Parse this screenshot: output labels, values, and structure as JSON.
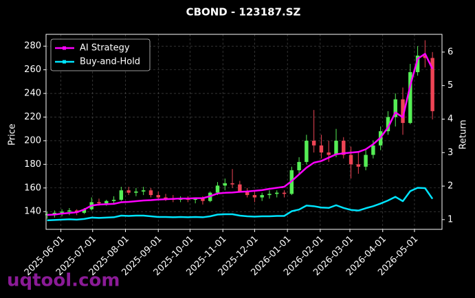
{
  "chart_data": {
    "type": "candlestick",
    "title": "CBOND - 123187.SZ",
    "ylabel": "Price",
    "y2label": "Return",
    "x": [
      "2025-05-19",
      "2025-05-26",
      "2025-06-02",
      "2025-06-09",
      "2025-06-16",
      "2025-06-23",
      "2025-06-30",
      "2025-07-07",
      "2025-07-14",
      "2025-07-21",
      "2025-07-28",
      "2025-08-04",
      "2025-08-11",
      "2025-08-18",
      "2025-08-25",
      "2025-09-01",
      "2025-09-08",
      "2025-09-15",
      "2025-09-22",
      "2025-09-29",
      "2025-10-06",
      "2025-10-13",
      "2025-10-20",
      "2025-10-27",
      "2025-11-03",
      "2025-11-10",
      "2025-11-17",
      "2025-11-24",
      "2025-12-01",
      "2025-12-08",
      "2025-12-15",
      "2025-12-22",
      "2025-12-29",
      "2026-01-05",
      "2026-01-12",
      "2026-01-19",
      "2026-01-26",
      "2026-02-02",
      "2026-02-09",
      "2026-02-16",
      "2026-02-23",
      "2026-03-02",
      "2026-03-09",
      "2026-03-16",
      "2026-03-23",
      "2026-03-30",
      "2026-04-06",
      "2026-04-13",
      "2026-04-20",
      "2026-04-27",
      "2026-05-04",
      "2026-05-11",
      "2026-05-18"
    ],
    "open": [
      137,
      138,
      139,
      140,
      141,
      139,
      142,
      148,
      147,
      149,
      150,
      158,
      156,
      157,
      158,
      154,
      152,
      151,
      150,
      151,
      150,
      151,
      149,
      156,
      162,
      164,
      163,
      157,
      154,
      152,
      154,
      155,
      156,
      155,
      175,
      182,
      200,
      196,
      190,
      188,
      200,
      188,
      180,
      178,
      188,
      196,
      208,
      220,
      235,
      215,
      258,
      272,
      270
    ],
    "high": [
      140,
      141,
      142,
      143,
      142,
      143,
      152,
      151,
      150,
      153,
      161,
      161,
      160,
      161,
      160,
      157,
      155,
      154,
      153,
      153,
      152,
      153,
      157,
      165,
      168,
      176,
      166,
      160,
      157,
      156,
      158,
      158,
      158,
      178,
      186,
      205,
      226,
      205,
      200,
      210,
      203,
      195,
      190,
      192,
      200,
      212,
      225,
      240,
      245,
      265,
      280,
      285,
      275
    ],
    "low": [
      134,
      135,
      136,
      137,
      137,
      138,
      141,
      145,
      145,
      147,
      149,
      154,
      153,
      154,
      152,
      150,
      149,
      148,
      148,
      148,
      147,
      146,
      148,
      154,
      158,
      160,
      156,
      152,
      148,
      149,
      151,
      152,
      152,
      154,
      172,
      180,
      190,
      185,
      182,
      186,
      185,
      168,
      172,
      175,
      185,
      192,
      205,
      212,
      205,
      214,
      255,
      262,
      218
    ],
    "close": [
      138,
      139,
      140,
      141,
      139,
      142,
      148,
      147,
      149,
      150,
      158,
      156,
      157,
      158,
      154,
      152,
      151,
      150,
      151,
      150,
      151,
      149,
      156,
      162,
      164,
      163,
      157,
      154,
      152,
      154,
      155,
      156,
      155,
      175,
      182,
      200,
      196,
      190,
      188,
      200,
      188,
      180,
      178,
      188,
      196,
      208,
      220,
      235,
      215,
      258,
      272,
      270,
      225
    ],
    "series": [
      {
        "name": "AI Strategy",
        "color": "#ff00ff",
        "axis": "y2",
        "values": [
          1.14,
          1.15,
          1.18,
          1.2,
          1.22,
          1.3,
          1.42,
          1.45,
          1.46,
          1.47,
          1.52,
          1.53,
          1.55,
          1.57,
          1.58,
          1.6,
          1.61,
          1.62,
          1.63,
          1.63,
          1.64,
          1.64,
          1.7,
          1.78,
          1.8,
          1.81,
          1.83,
          1.84,
          1.86,
          1.88,
          1.92,
          1.95,
          1.98,
          2.15,
          2.35,
          2.55,
          2.7,
          2.75,
          2.85,
          2.95,
          2.98,
          3.0,
          3.02,
          3.1,
          3.25,
          3.45,
          3.75,
          4.2,
          4.05,
          5.0,
          5.8,
          5.95,
          5.5
        ]
      },
      {
        "name": "Buy-and-Hold",
        "color": "#00e5ff",
        "axis": "y2",
        "values": [
          0.98,
          0.99,
          1.0,
          1.01,
          1.0,
          1.02,
          1.06,
          1.05,
          1.06,
          1.07,
          1.12,
          1.11,
          1.12,
          1.12,
          1.1,
          1.08,
          1.08,
          1.07,
          1.08,
          1.07,
          1.08,
          1.07,
          1.1,
          1.15,
          1.16,
          1.16,
          1.12,
          1.1,
          1.09,
          1.1,
          1.1,
          1.11,
          1.11,
          1.25,
          1.3,
          1.42,
          1.4,
          1.36,
          1.35,
          1.43,
          1.35,
          1.29,
          1.27,
          1.34,
          1.4,
          1.48,
          1.57,
          1.68,
          1.55,
          1.85,
          1.95,
          1.94,
          1.62
        ]
      }
    ],
    "up_color": "#55ee55",
    "down_color": "#ee4455",
    "xlim": [
      "2025-05-18",
      "2026-05-27"
    ],
    "xticks": [
      "2025-06-01",
      "2025-07-01",
      "2025-08-01",
      "2025-09-01",
      "2025-10-01",
      "2025-11-01",
      "2025-12-01",
      "2026-01-01",
      "2026-02-01",
      "2026-03-01",
      "2026-04-01",
      "2026-05-01"
    ],
    "ylim": [
      125,
      290
    ],
    "yticks": [
      140,
      160,
      180,
      200,
      220,
      240,
      260,
      280
    ],
    "y2lim": [
      0.71,
      6.53
    ],
    "y2ticks": [
      1,
      2,
      3,
      4,
      5,
      6
    ],
    "grid": true,
    "legend": "upper left"
  },
  "watermark": "uqtool.com"
}
